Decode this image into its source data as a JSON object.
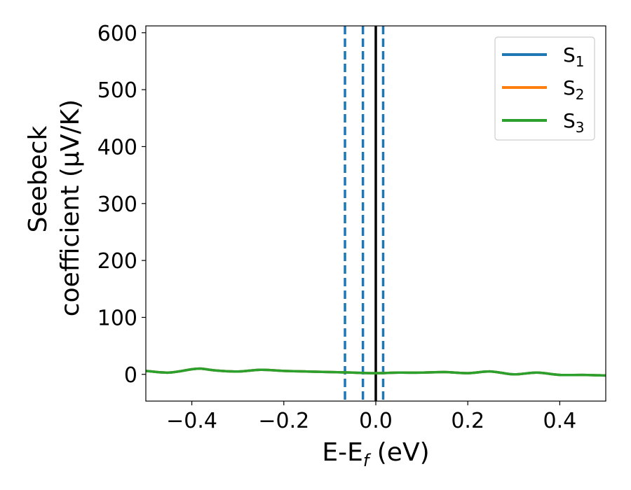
{
  "chart_data": {
    "type": "line",
    "xlabel_main": "E-E",
    "xlabel_sub": "f",
    "xlabel_tail": " (eV)",
    "ylabel_line1": "Seebeck",
    "ylabel_line2": "coefficient  (μV/K)",
    "xlim": [
      -0.5,
      0.5
    ],
    "ylim": [
      -47,
      612
    ],
    "xticks": [
      -0.4,
      -0.2,
      0.0,
      0.2,
      0.4
    ],
    "xtick_labels": [
      "−0.4",
      "−0.2",
      "0.0",
      "0.2",
      "0.4"
    ],
    "yticks": [
      0,
      100,
      200,
      300,
      400,
      500,
      600
    ],
    "ytick_labels": [
      "0",
      "100",
      "200",
      "300",
      "400",
      "500",
      "600"
    ],
    "grid": false,
    "legend_position": "top-right",
    "legend": [
      {
        "base": "S",
        "sub": "1",
        "color": "#1f77b4"
      },
      {
        "base": "S",
        "sub": "2",
        "color": "#ff7f0e"
      },
      {
        "base": "S",
        "sub": "3",
        "color": "#2ca02c"
      }
    ],
    "vlines": [
      {
        "x": -0.067,
        "style": "dashed",
        "color": "#1f77b4"
      },
      {
        "x": -0.028,
        "style": "dashed",
        "color": "#1f77b4"
      },
      {
        "x": 0.016,
        "style": "dashed",
        "color": "#1f77b4"
      },
      {
        "x": 0.0,
        "style": "solid",
        "color": "#000000"
      }
    ],
    "x": [
      -0.5,
      -0.45,
      -0.4,
      -0.38,
      -0.35,
      -0.3,
      -0.25,
      -0.2,
      -0.15,
      -0.1,
      -0.05,
      0.0,
      0.05,
      0.1,
      0.15,
      0.2,
      0.25,
      0.3,
      0.35,
      0.4,
      0.45,
      0.5
    ],
    "series": [
      {
        "name": "S1",
        "color": "#1f77b4",
        "values": [
          6,
          3,
          9,
          10,
          7,
          5,
          8,
          6,
          5,
          4,
          3,
          2,
          3,
          3,
          4,
          2,
          5,
          0,
          3,
          -1,
          -1,
          -2
        ]
      },
      {
        "name": "S2",
        "color": "#ff7f0e",
        "values": [
          6,
          3,
          9,
          10,
          7,
          5,
          8,
          6,
          5,
          4,
          3,
          2,
          3,
          3,
          4,
          2,
          5,
          0,
          3,
          -1,
          -1,
          -2
        ]
      },
      {
        "name": "S3",
        "color": "#2ca02c",
        "values": [
          6,
          3,
          9,
          10,
          7,
          5,
          8,
          6,
          5,
          4,
          3,
          2,
          3,
          3,
          4,
          2,
          5,
          0,
          3,
          -1,
          -1,
          -2
        ]
      }
    ]
  }
}
